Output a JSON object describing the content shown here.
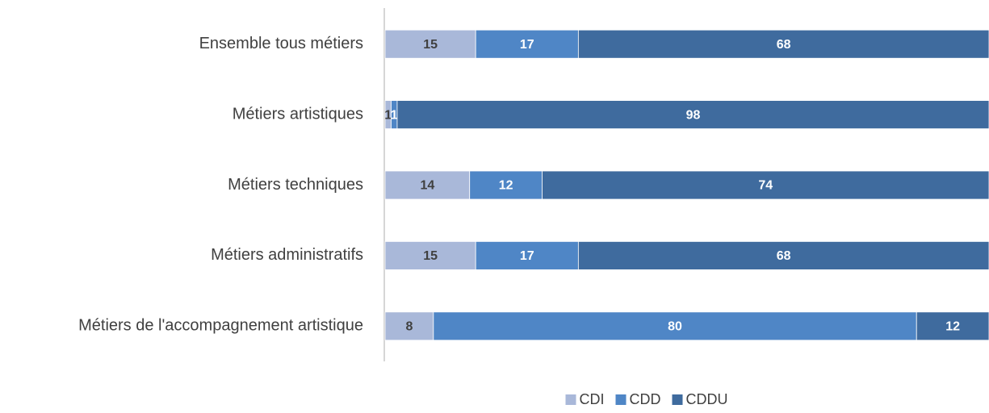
{
  "chart_data": {
    "type": "bar",
    "categories": [
      "Ensemble tous métiers",
      "Métiers artistiques",
      "Métiers techniques",
      "Métiers administratifs",
      "Métiers de l'accompagnement artistique"
    ],
    "series": [
      {
        "name": "CDI",
        "color": "#a9b8d9",
        "values": [
          15,
          1,
          14,
          15,
          8
        ]
      },
      {
        "name": "CDD",
        "color": "#4f86c6",
        "values": [
          17,
          1,
          12,
          17,
          80
        ]
      },
      {
        "name": "CDDU",
        "color": "#3f6b9e",
        "values": [
          68,
          98,
          74,
          68,
          12
        ]
      }
    ]
  }
}
